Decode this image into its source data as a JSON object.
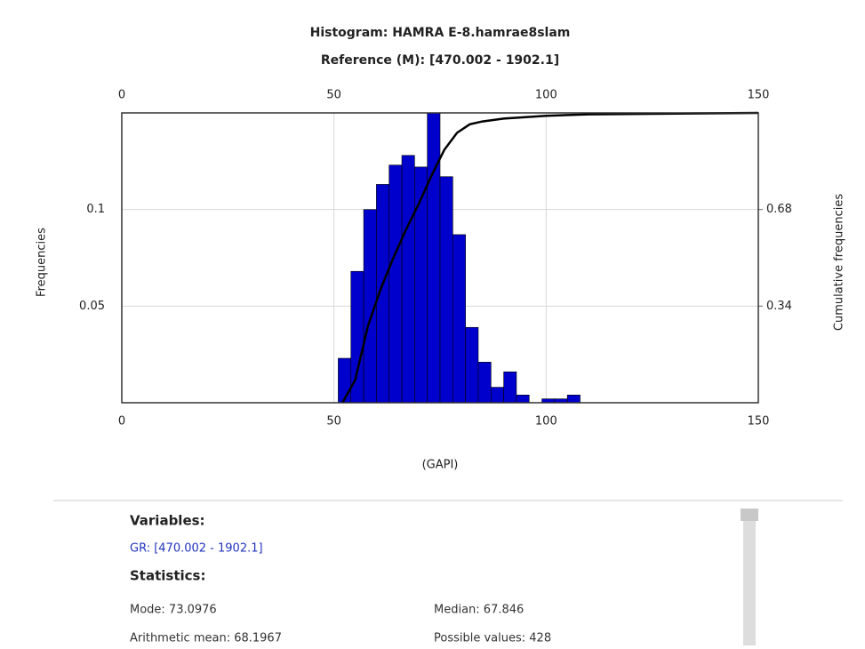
{
  "chart_data": {
    "type": "histogram",
    "title": "Histogram: HAMRA E-8.hamrae8slam",
    "subtitle": "Reference (M): [470.002 - 1902.1]",
    "xlabel": "(GAPI)",
    "ylabel": "Frequencies",
    "y2label": "Cumulative frequencies",
    "bins": [
      51,
      54,
      57,
      60,
      63,
      66,
      69,
      72,
      75,
      78,
      81,
      84,
      87,
      90,
      93,
      96,
      99,
      102,
      105,
      108
    ],
    "values": [
      0.023,
      0.068,
      0.1,
      0.113,
      0.123,
      0.128,
      0.122,
      0.15,
      0.117,
      0.087,
      0.039,
      0.021,
      0.008,
      0.016,
      0.004,
      0,
      0.002,
      0.002,
      0.004
    ],
    "color": "#0000cc",
    "cumulative": {
      "axis": "y2",
      "color": "#000000",
      "x": [
        52,
        55,
        58,
        61,
        64,
        67,
        70,
        73,
        76,
        79,
        82,
        85,
        90,
        100,
        110,
        150
      ],
      "values": [
        0,
        0.08,
        0.27,
        0.4,
        0.51,
        0.61,
        0.7,
        0.8,
        0.89,
        0.95,
        0.98,
        0.99,
        1.0,
        1.01,
        1.015,
        1.02
      ]
    },
    "xlim": [
      0,
      150
    ],
    "xticks": [
      0,
      50,
      100,
      150
    ],
    "ylim": [
      0,
      0.15
    ],
    "yticks": [
      0.05,
      0.1
    ],
    "y2lim": [
      0,
      1.02
    ],
    "y2ticks": [
      0.34,
      0.68
    ],
    "grid": true
  },
  "statistics_panel": {
    "variables_heading": "Variables:",
    "variable": "GR: [470.002 - 1902.1]",
    "statistics_heading": "Statistics:",
    "mode": "Mode: 73.0976",
    "median": "Median: 67.846",
    "mean": "Arithmetic mean: 68.1967",
    "possible_values": "Possible values: 428"
  }
}
